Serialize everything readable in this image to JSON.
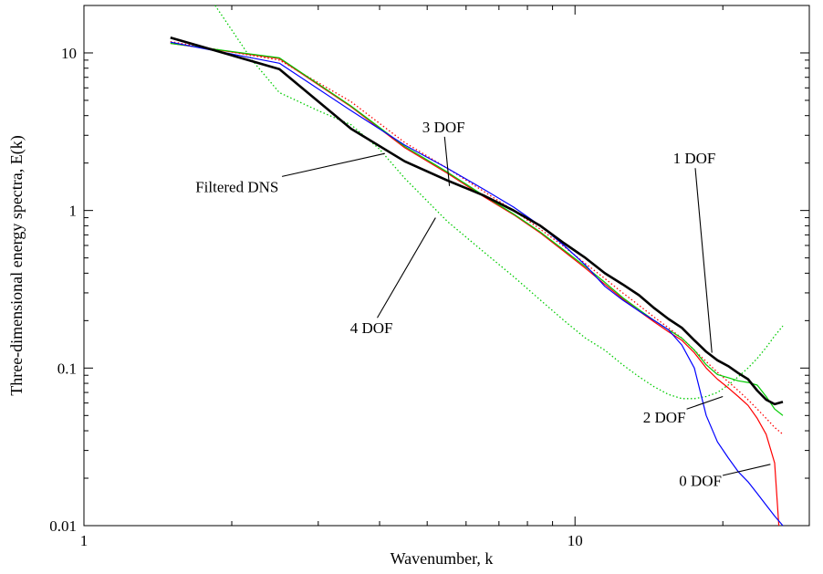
{
  "chart_data": {
    "type": "line",
    "xlabel": "Wavenumber, k",
    "ylabel": "Three-dimensional energy spectra, E(k)",
    "xscale": "log",
    "yscale": "log",
    "xlim": [
      1,
      30
    ],
    "ylim": [
      0.01,
      20
    ],
    "x_tick_labels": [
      {
        "value": 1,
        "label": "1"
      },
      {
        "value": 10,
        "label": "10"
      }
    ],
    "y_tick_labels": [
      {
        "value": 0.01,
        "label": "0.01"
      },
      {
        "value": 0.1,
        "label": "0.1"
      },
      {
        "value": 1,
        "label": "1"
      },
      {
        "value": 10,
        "label": "10"
      }
    ],
    "grid": false,
    "legend": "none",
    "series": [
      {
        "name": "Filtered DNS",
        "color": "#000000",
        "style": "solid-thick",
        "x": [
          1.5,
          2.5,
          3.5,
          4.5,
          5.5,
          6.5,
          7.5,
          8.5,
          9.5,
          10.5,
          11.5,
          12.5,
          13.5,
          14.5,
          15.5,
          16.5,
          17.5,
          18.5,
          19.5,
          20.5,
          21.5,
          22.5,
          23.5,
          24.5,
          25.5,
          26.5
        ],
        "y": [
          12.5,
          7.9,
          3.3,
          2.05,
          1.55,
          1.25,
          1.0,
          0.8,
          0.62,
          0.5,
          0.4,
          0.34,
          0.29,
          0.24,
          0.205,
          0.18,
          0.15,
          0.127,
          0.112,
          0.103,
          0.093,
          0.085,
          0.072,
          0.063,
          0.059,
          0.061
        ]
      },
      {
        "name": "0 DOF",
        "color": "#0000ff",
        "style": "solid",
        "x": [
          1.5,
          2.5,
          3.5,
          4.5,
          5.5,
          6.5,
          7.5,
          8.5,
          9.5,
          10.5,
          11.5,
          12.5,
          13.5,
          14.5,
          15.5,
          16.5,
          17.5,
          18.5,
          19.5,
          20.5,
          21.5,
          22.5,
          23.5,
          24.5,
          25.5,
          26.5
        ],
        "y": [
          11.7,
          8.6,
          4.3,
          2.6,
          1.85,
          1.37,
          1.05,
          0.8,
          0.6,
          0.45,
          0.33,
          0.27,
          0.23,
          0.2,
          0.175,
          0.14,
          0.1,
          0.05,
          0.034,
          0.027,
          0.022,
          0.019,
          0.016,
          0.0135,
          0.0115,
          0.0097
        ]
      },
      {
        "name": "1 DOF",
        "color": "#00cc00",
        "style": "solid",
        "x": [
          1.5,
          2.5,
          3.5,
          4.5,
          5.5,
          6.5,
          7.5,
          8.5,
          9.5,
          10.5,
          11.5,
          12.5,
          13.5,
          14.5,
          15.5,
          16.5,
          17.5,
          18.5,
          19.5,
          20.5,
          21.5,
          22.5,
          23.5,
          24.5,
          25.5,
          26.5
        ],
        "y": [
          11.5,
          9.3,
          4.6,
          2.55,
          1.75,
          1.25,
          0.95,
          0.73,
          0.56,
          0.44,
          0.35,
          0.28,
          0.235,
          0.2,
          0.175,
          0.155,
          0.13,
          0.105,
          0.091,
          0.087,
          0.083,
          0.081,
          0.078,
          0.066,
          0.055,
          0.05
        ]
      },
      {
        "name": "2 DOF",
        "color": "#ff0000",
        "style": "solid",
        "x": [
          1.5,
          2.5,
          3.5,
          4.5,
          5.5,
          6.5,
          7.5,
          8.5,
          9.5,
          10.5,
          11.5,
          12.5,
          13.5,
          14.5,
          15.5,
          16.5,
          17.5,
          18.5,
          19.5,
          20.5,
          21.5,
          22.5,
          23.5,
          24.5,
          25.5,
          26.0
        ],
        "y": [
          11.5,
          9.2,
          4.55,
          2.5,
          1.72,
          1.23,
          0.94,
          0.72,
          0.55,
          0.43,
          0.34,
          0.275,
          0.23,
          0.196,
          0.17,
          0.15,
          0.125,
          0.1,
          0.085,
          0.075,
          0.066,
          0.058,
          0.048,
          0.038,
          0.025,
          0.0095
        ]
      },
      {
        "name": "3 DOF",
        "color": "#ff0000",
        "style": "dotted",
        "x": [
          1.5,
          2.5,
          3.5,
          4.5,
          5.5,
          6.5,
          7.5,
          8.5,
          9.5,
          10.5,
          11.5,
          12.5,
          13.5,
          14.5,
          15.5,
          16.5,
          17.5,
          18.5,
          19.5,
          20.5,
          21.5,
          22.5,
          23.5,
          24.5,
          25.5,
          26.5
        ],
        "y": [
          11.8,
          9.0,
          4.9,
          2.7,
          1.85,
          1.33,
          1.0,
          0.76,
          0.59,
          0.46,
          0.37,
          0.3,
          0.25,
          0.21,
          0.18,
          0.155,
          0.13,
          0.11,
          0.094,
          0.082,
          0.072,
          0.063,
          0.055,
          0.048,
          0.042,
          0.038
        ]
      },
      {
        "name": "4 DOF",
        "color": "#00cc00",
        "style": "dotted",
        "x": [
          1.85,
          2.2,
          2.5,
          3.0,
          3.5,
          4.0,
          4.5,
          5.5,
          6.5,
          7.5,
          8.5,
          9.5,
          10.5,
          11.5,
          12.5,
          13.5,
          14.5,
          15.5,
          16.5,
          17.5,
          18.5,
          19.5,
          20.5,
          21.5,
          22.5,
          23.5,
          24.5,
          25.5,
          26.5
        ],
        "y": [
          20,
          9,
          5.6,
          4.3,
          3.5,
          2.45,
          1.6,
          0.85,
          0.55,
          0.38,
          0.27,
          0.2,
          0.155,
          0.13,
          0.105,
          0.088,
          0.076,
          0.068,
          0.064,
          0.064,
          0.066,
          0.07,
          0.078,
          0.088,
          0.1,
          0.115,
          0.135,
          0.16,
          0.185
        ]
      }
    ],
    "annotations": [
      {
        "text": "3 DOF",
        "text_at": [
          5.4,
          3.4
        ],
        "arrow_to": [
          5.55,
          1.43
        ]
      },
      {
        "text": "Filtered DNS",
        "text_at": [
          2.05,
          1.42
        ],
        "arrow_to": [
          4.1,
          2.3
        ]
      },
      {
        "text": "1 DOF",
        "text_at": [
          17.5,
          2.15
        ],
        "arrow_to": [
          19.0,
          0.125
        ]
      },
      {
        "text": "4 DOF",
        "text_at": [
          3.85,
          0.18
        ],
        "arrow_to": [
          5.2,
          0.9
        ]
      },
      {
        "text": "2 DOF",
        "text_at": [
          15.2,
          0.049
        ],
        "arrow_to": [
          20.0,
          0.066
        ]
      },
      {
        "text": "0 DOF",
        "text_at": [
          18.0,
          0.0193
        ],
        "arrow_to": [
          25.0,
          0.0245
        ]
      }
    ]
  }
}
